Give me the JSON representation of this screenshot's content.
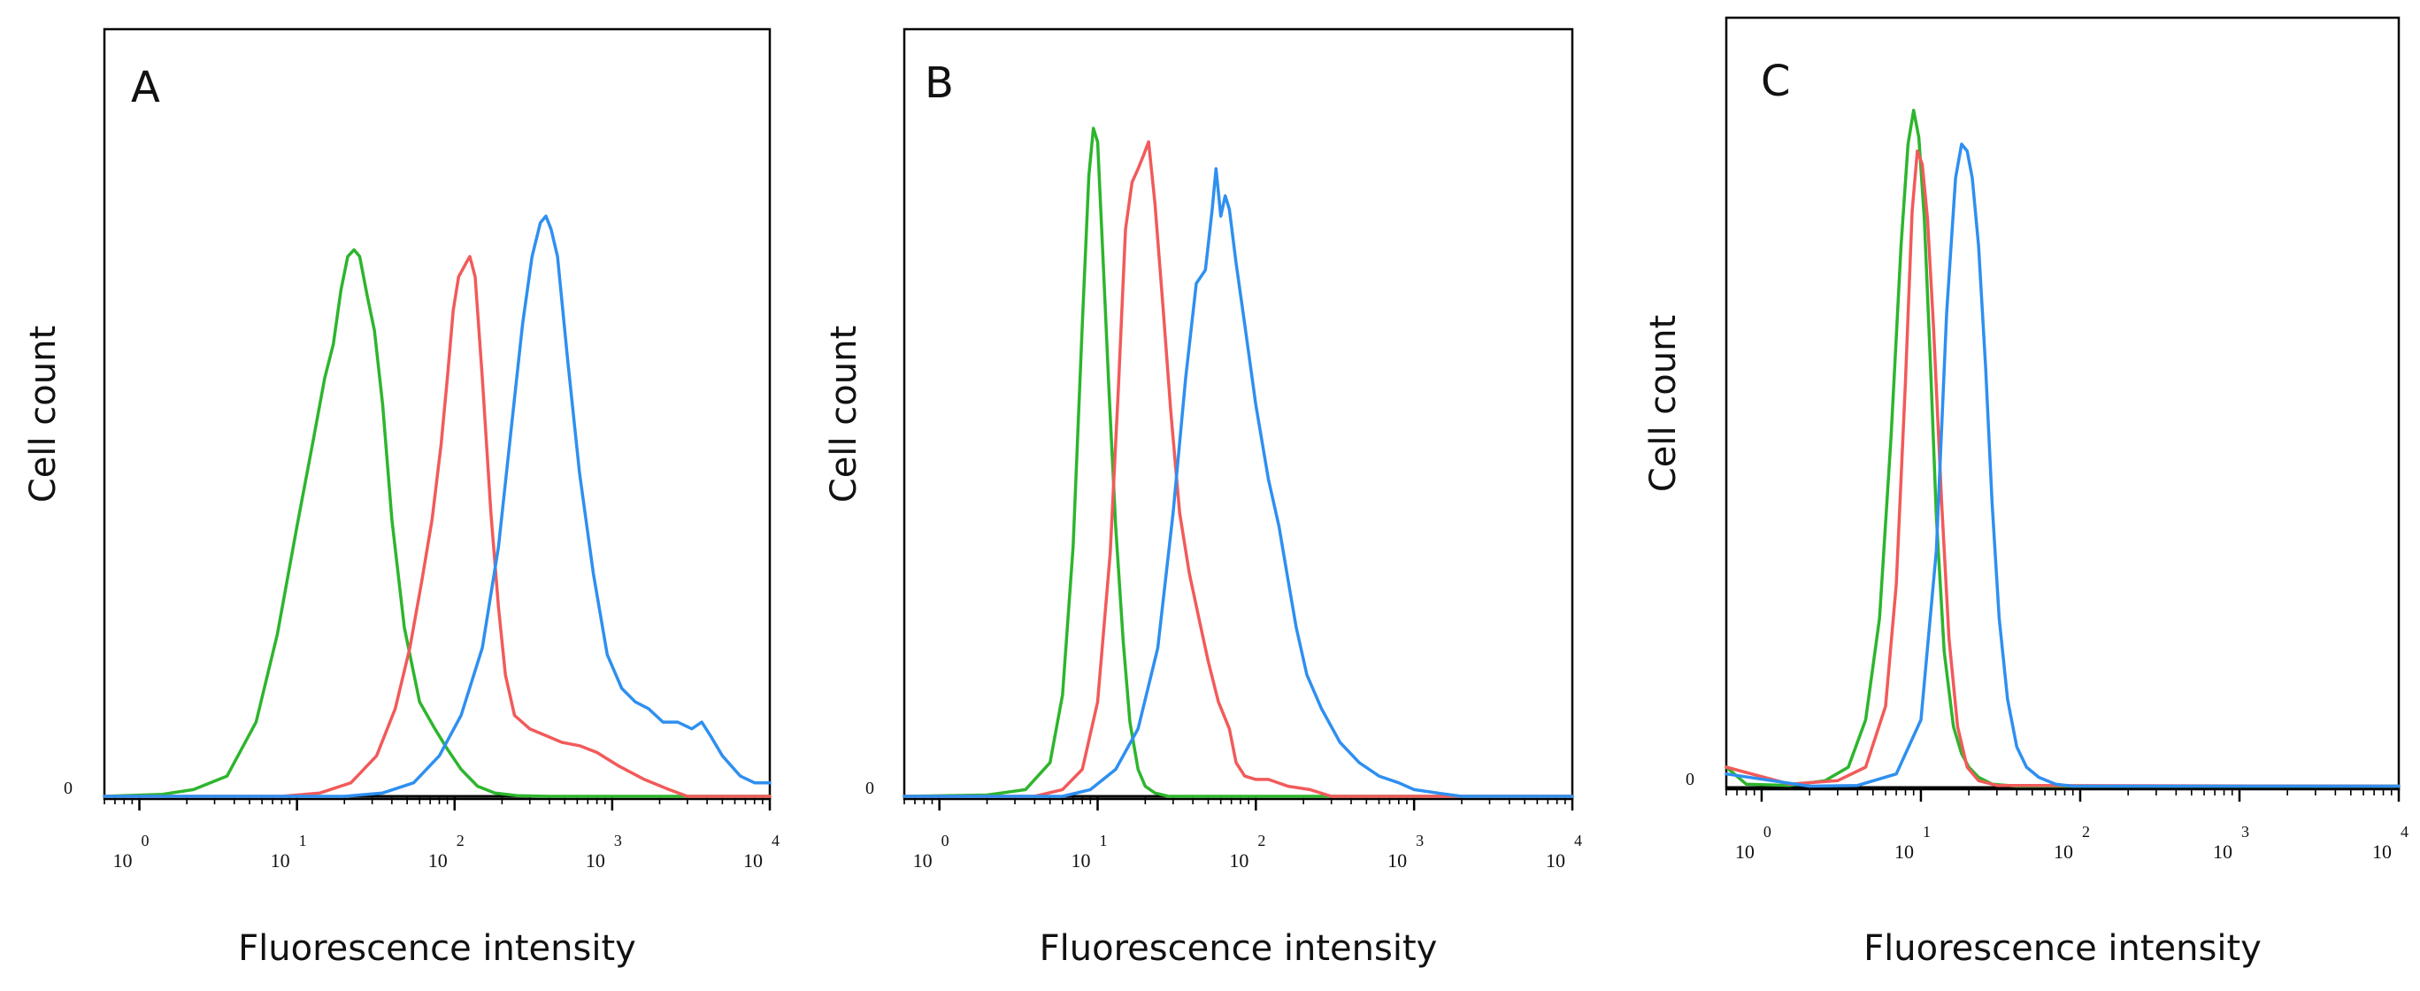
{
  "colors": {
    "green": "#2db52d",
    "red": "#f25a5a",
    "blue": "#2e8ff0",
    "frame": "#000000"
  },
  "chart_data": [
    {
      "type": "line",
      "panel_label": "A",
      "xlabel": "Fluorescence intensity",
      "ylabel": "Cell count",
      "xscale": "log",
      "xlim": [
        0.6,
        10000
      ],
      "ylim": [
        0,
        100
      ],
      "x_ticks": [
        {
          "base": "10",
          "exp": "0",
          "value": 1
        },
        {
          "base": "10",
          "exp": "1",
          "value": 10
        },
        {
          "base": "10",
          "exp": "2",
          "value": 100
        },
        {
          "base": "10",
          "exp": "3",
          "value": 1000
        },
        {
          "base": "10",
          "exp": "4",
          "value": 10000
        }
      ],
      "y_zero_label": "0",
      "series": [
        {
          "name": "green",
          "color_key": "green",
          "x": [
            0.6,
            1.4,
            2.2,
            3.6,
            5.5,
            7.5,
            10,
            12.5,
            15,
            17,
            19,
            21,
            23,
            25,
            28,
            31,
            35,
            40,
            48,
            60,
            75,
            90,
            110,
            140,
            180,
            250,
            400,
            10000
          ],
          "y": [
            0,
            0.3,
            1,
            3,
            11,
            24,
            40,
            52,
            62,
            67,
            75,
            80,
            81,
            80,
            74,
            69,
            58,
            41,
            25,
            14,
            10,
            7,
            4,
            1.5,
            0.5,
            0.1,
            0,
            0
          ]
        },
        {
          "name": "red",
          "color_key": "red",
          "x": [
            0.6,
            8,
            14,
            22,
            32,
            42,
            52,
            62,
            72,
            82,
            90,
            98,
            106,
            112,
            118,
            125,
            135,
            150,
            170,
            190,
            210,
            240,
            300,
            380,
            480,
            620,
            800,
            1100,
            1600,
            2300,
            3000,
            4000,
            10000
          ],
          "y": [
            0,
            0,
            0.5,
            2,
            6,
            13,
            22,
            32,
            41,
            52,
            62,
            72,
            77,
            78,
            79,
            80,
            77,
            62,
            42,
            28,
            18,
            12,
            10,
            9,
            8,
            7.5,
            6.5,
            4.5,
            2.5,
            1,
            0,
            0,
            0
          ]
        },
        {
          "name": "blue",
          "color_key": "blue",
          "x": [
            0.6,
            20,
            35,
            55,
            80,
            110,
            150,
            190,
            230,
            270,
            310,
            350,
            380,
            410,
            450,
            520,
            620,
            760,
            930,
            1150,
            1400,
            1700,
            2100,
            2600,
            3200,
            3700,
            4200,
            5000,
            6500,
            8000,
            10000
          ],
          "y": [
            0,
            0,
            0.5,
            2,
            6,
            12,
            22,
            37,
            55,
            70,
            80,
            85,
            86,
            84,
            80,
            65,
            48,
            33,
            21,
            16,
            14,
            13,
            11,
            11,
            10,
            11,
            9,
            6,
            3,
            2,
            2
          ]
        }
      ]
    },
    {
      "type": "line",
      "panel_label": "B",
      "xlabel": "Fluorescence intensity",
      "ylabel": "Cell count",
      "xscale": "log",
      "xlim": [
        0.6,
        10000
      ],
      "ylim": [
        0,
        100
      ],
      "x_ticks": [
        {
          "base": "10",
          "exp": "0",
          "value": 1
        },
        {
          "base": "10",
          "exp": "1",
          "value": 10
        },
        {
          "base": "10",
          "exp": "2",
          "value": 100
        },
        {
          "base": "10",
          "exp": "3",
          "value": 1000
        },
        {
          "base": "10",
          "exp": "4",
          "value": 10000
        }
      ],
      "y_zero_label": "0",
      "series": [
        {
          "name": "green",
          "color_key": "green",
          "x": [
            0.6,
            2,
            3.5,
            5,
            6,
            7,
            8,
            8.8,
            9.4,
            10,
            10.8,
            11.8,
            13,
            14.5,
            16,
            18,
            20,
            23,
            28,
            100,
            10000
          ],
          "y": [
            0,
            0.2,
            1,
            5,
            15,
            37,
            70,
            92,
            99,
            97,
            80,
            60,
            40,
            23,
            11,
            4,
            1.5,
            0.5,
            0,
            0,
            0
          ]
        },
        {
          "name": "red",
          "color_key": "red",
          "x": [
            0.6,
            4,
            6,
            8,
            10,
            12,
            13.5,
            15,
            16.5,
            18,
            19.5,
            21,
            23,
            26,
            29,
            33,
            38,
            44,
            50,
            58,
            68,
            75,
            85,
            100,
            120,
            160,
            220,
            300,
            10000
          ],
          "y": [
            0,
            0,
            1,
            4,
            14,
            36,
            60,
            84,
            91,
            93,
            95,
            97,
            88,
            72,
            57,
            42,
            33,
            26,
            20,
            14,
            10,
            5,
            3,
            2.5,
            2.5,
            1.5,
            1,
            0,
            0
          ]
        },
        {
          "name": "blue",
          "color_key": "blue",
          "x": [
            0.6,
            6,
            9,
            13,
            18,
            24,
            30,
            36,
            42,
            48,
            53,
            56,
            60,
            64,
            68,
            75,
            85,
            100,
            120,
            140,
            160,
            180,
            210,
            260,
            340,
            450,
            600,
            800,
            1000,
            1400,
            2000,
            10000
          ],
          "y": [
            0,
            0,
            1,
            4,
            10,
            22,
            42,
            62,
            76,
            78,
            87,
            93,
            86,
            89,
            87,
            79,
            70,
            58,
            47,
            40,
            32,
            25,
            18,
            13,
            8,
            5,
            3,
            2,
            1,
            0.5,
            0,
            0
          ]
        }
      ]
    },
    {
      "type": "line",
      "panel_label": "C",
      "xlabel": "Fluorescence intensity",
      "ylabel": "Cell count",
      "xscale": "log",
      "xlim": [
        0.6,
        10000
      ],
      "ylim": [
        0,
        100
      ],
      "x_ticks": [
        {
          "base": "10",
          "exp": "0",
          "value": 1
        },
        {
          "base": "10",
          "exp": "1",
          "value": 10
        },
        {
          "base": "10",
          "exp": "2",
          "value": 100
        },
        {
          "base": "10",
          "exp": "3",
          "value": 1000
        },
        {
          "base": "10",
          "exp": "4",
          "value": 10000
        }
      ],
      "y_zero_label": "0",
      "series": [
        {
          "name": "green",
          "color_key": "green",
          "x": [
            0.6,
            0.8,
            1.5,
            2.5,
            3.5,
            4.5,
            5.5,
            6.5,
            7.5,
            8.3,
            9,
            9.7,
            10.5,
            11.5,
            12.5,
            14,
            16,
            18,
            20,
            23,
            28,
            40,
            10000
          ],
          "y": [
            3,
            0.5,
            0.3,
            1,
            3,
            10,
            25,
            52,
            80,
            95,
            100,
            96,
            84,
            62,
            40,
            20,
            9,
            5,
            3,
            1.5,
            0.5,
            0.2,
            0.2
          ]
        },
        {
          "name": "red",
          "color_key": "red",
          "x": [
            0.6,
            1.5,
            3,
            4.5,
            6,
            7,
            8,
            8.8,
            9.5,
            10.2,
            11,
            12,
            13.5,
            15,
            17,
            19.5,
            23,
            30,
            10000
          ],
          "y": [
            3,
            0.5,
            1,
            3,
            12,
            30,
            60,
            85,
            94,
            92,
            84,
            68,
            42,
            22,
            9,
            3,
            1,
            0.3,
            0.2
          ]
        },
        {
          "name": "blue",
          "color_key": "blue",
          "x": [
            0.6,
            2,
            4,
            7,
            10,
            12.5,
            14.5,
            16.5,
            18,
            19.5,
            21,
            23,
            25.5,
            28,
            31,
            35,
            40,
            46,
            55,
            70,
            90,
            10000
          ],
          "y": [
            2,
            0.2,
            0.3,
            2,
            10,
            35,
            70,
            90,
            95,
            94,
            90,
            80,
            62,
            42,
            25,
            13,
            6,
            3,
            1.5,
            0.5,
            0.2,
            0.2
          ]
        }
      ]
    }
  ]
}
